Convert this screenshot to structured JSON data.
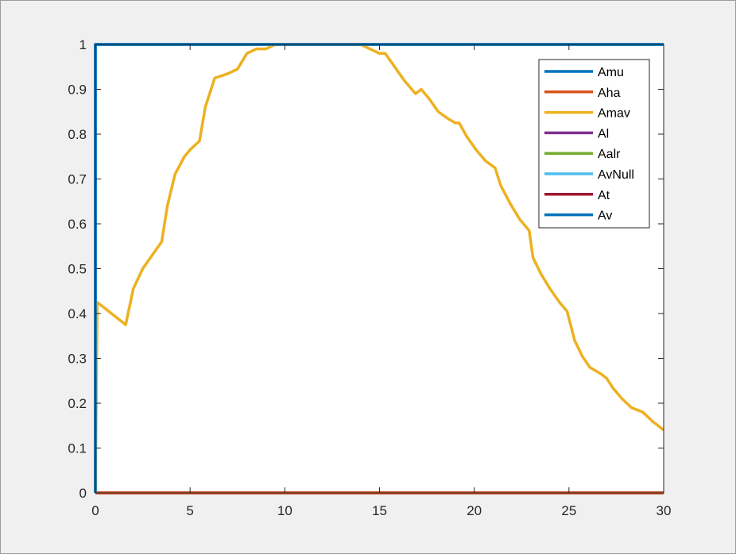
{
  "chart_data": {
    "type": "line",
    "title": "",
    "xlabel": "",
    "ylabel": "",
    "xlim": [
      0,
      30
    ],
    "ylim": [
      0,
      1
    ],
    "xticks": [
      0,
      5,
      10,
      15,
      20,
      25,
      30
    ],
    "yticks": [
      0,
      0.1,
      0.2,
      0.3,
      0.4,
      0.5,
      0.6,
      0.7,
      0.8,
      0.9,
      1
    ],
    "xtick_labels": [
      "0",
      "5",
      "10",
      "15",
      "20",
      "25",
      "30"
    ],
    "ytick_labels": [
      "0",
      "0.1",
      "0.2",
      "0.3",
      "0.4",
      "0.5",
      "0.6",
      "0.7",
      "0.8",
      "0.9",
      "1"
    ],
    "grid": false,
    "legend": "top-right",
    "series": [
      {
        "name": "Amu",
        "color": "#0072bd",
        "x": [
          0,
          0,
          30
        ],
        "y": [
          0,
          1,
          1
        ]
      },
      {
        "name": "Aha",
        "color": "#d95319",
        "x": [
          0,
          30
        ],
        "y": [
          0,
          0
        ]
      },
      {
        "name": "Amav",
        "color": "#edb120",
        "x": [
          0,
          0.1,
          1.6,
          2.0,
          2.5,
          3.0,
          3.5,
          3.8,
          4.2,
          4.7,
          5.0,
          5.5,
          5.8,
          6.3,
          7.0,
          7.5,
          8.0,
          8.5,
          9.0,
          9.5,
          10.0,
          11.0,
          12.0,
          13.0,
          14.0,
          14.5,
          15.0,
          15.3,
          15.8,
          16.3,
          16.9,
          17.2,
          17.6,
          18.1,
          18.6,
          19.0,
          19.2,
          19.6,
          20.1,
          20.6,
          21.1,
          21.4,
          21.9,
          22.4,
          22.9,
          23.1,
          23.5,
          24.0,
          24.5,
          24.9,
          25.3,
          25.7,
          26.1,
          26.7,
          27.0,
          27.3,
          27.8,
          28.3,
          28.9,
          29.4,
          30.0
        ],
        "y": [
          0,
          0.425,
          0.375,
          0.455,
          0.5,
          0.53,
          0.56,
          0.64,
          0.71,
          0.75,
          0.765,
          0.785,
          0.86,
          0.925,
          0.935,
          0.945,
          0.98,
          0.99,
          0.99,
          1.0,
          1.0,
          1.0,
          1.0,
          1.0,
          1.0,
          0.99,
          0.98,
          0.98,
          0.95,
          0.92,
          0.89,
          0.9,
          0.88,
          0.85,
          0.835,
          0.825,
          0.825,
          0.795,
          0.765,
          0.74,
          0.725,
          0.685,
          0.645,
          0.61,
          0.585,
          0.525,
          0.49,
          0.455,
          0.425,
          0.405,
          0.34,
          0.305,
          0.28,
          0.265,
          0.255,
          0.235,
          0.21,
          0.19,
          0.18,
          0.16,
          0.14
        ]
      },
      {
        "name": "Al",
        "color": "#7e2f8e",
        "x": [
          0,
          30
        ],
        "y": [
          0,
          0
        ]
      },
      {
        "name": "Aalr",
        "color": "#77ac30",
        "x": [
          0,
          30
        ],
        "y": [
          0,
          0
        ]
      },
      {
        "name": "AvNull",
        "color": "#4dbeee",
        "x": [
          0,
          30
        ],
        "y": [
          0,
          0
        ]
      },
      {
        "name": "At",
        "color": "#a2142f",
        "x": [
          0,
          30
        ],
        "y": [
          0,
          0
        ]
      },
      {
        "name": "Av",
        "color": "#0072bd",
        "x": [
          0,
          0,
          30
        ],
        "y": [
          0,
          1,
          1
        ]
      }
    ]
  }
}
